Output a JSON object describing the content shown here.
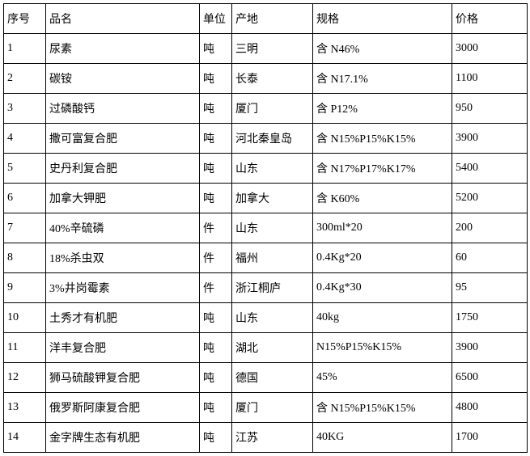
{
  "table": {
    "columns": [
      "序号",
      "品名",
      "单位",
      "产地",
      "规格",
      "价格"
    ],
    "rows": [
      [
        "1",
        "尿素",
        "吨",
        "三明",
        "含 N46%",
        "3000"
      ],
      [
        "2",
        "碳铵",
        "吨",
        "长泰",
        "含 N17.1%",
        "1100"
      ],
      [
        "3",
        "过磷酸钙",
        "吨",
        "厦门",
        "含 P12%",
        "950"
      ],
      [
        "4",
        "撒可富复合肥",
        "吨",
        "河北秦皇岛",
        "含 N15%P15%K15%",
        "3900"
      ],
      [
        "5",
        "史丹利复合肥",
        "吨",
        "山东",
        "含 N17%P17%K17%",
        "5400"
      ],
      [
        "6",
        "加拿大钾肥",
        "吨",
        "加拿大",
        "含 K60%",
        "5200"
      ],
      [
        "7",
        "40%辛硫磷",
        "件",
        "山东",
        "300ml*20",
        "200"
      ],
      [
        "8",
        "18%杀虫双",
        "件",
        "福州",
        "0.4Kg*20",
        "60"
      ],
      [
        "9",
        "3%井岗霉素",
        "件",
        "浙江桐庐",
        "0.4Kg*30",
        "95"
      ],
      [
        "10",
        "土秀才有机肥",
        "吨",
        "山东",
        "40kg",
        "1750"
      ],
      [
        "11",
        "洋丰复合肥",
        "吨",
        "湖北",
        "N15%P15%K15%",
        "3900"
      ],
      [
        "12",
        "狮马硫酸钾复合肥",
        "吨",
        "德国",
        "45%",
        "6500"
      ],
      [
        "13",
        "俄罗斯阿康复合肥",
        "吨",
        "厦门",
        "含 N15%P15%K15%",
        "4800"
      ],
      [
        "14",
        "金字牌生态有机肥",
        "吨",
        "江苏",
        "40KG",
        "1700"
      ]
    ]
  }
}
